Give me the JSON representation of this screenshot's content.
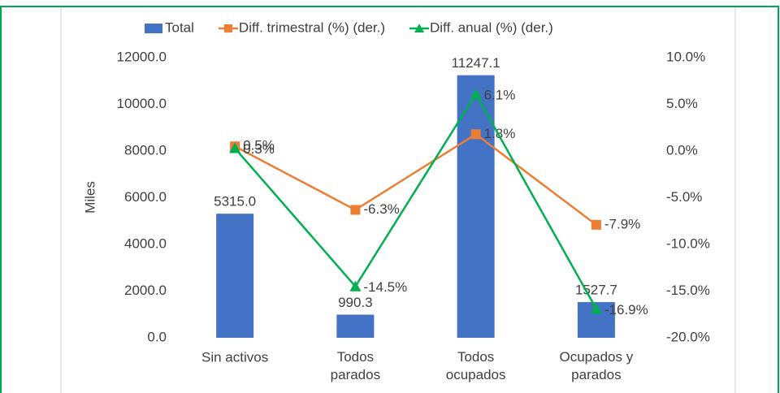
{
  "chart_data": {
    "type": "bar",
    "y_label": "Miles",
    "categories": [
      "Sin activos",
      "Todos parados",
      "Todos ocupados",
      "Ocupados y parados"
    ],
    "series": [
      {
        "name": "Total",
        "type": "bar",
        "color": "#4472c4",
        "values": [
          5315.0,
          990.3,
          11247.1,
          1527.7
        ],
        "value_labels": [
          "5315.0",
          "990.3",
          "11247.1",
          "1527.7"
        ]
      },
      {
        "name": "Diff. trimestral (%) (der.)",
        "type": "line",
        "axis": "y2",
        "marker": "square",
        "color": "#ed7d31",
        "values": [
          0.5,
          -6.3,
          1.8,
          -7.9
        ],
        "value_labels": [
          "0.5%",
          "-6.3%",
          "1.8%",
          "-7.9%"
        ]
      },
      {
        "name": "Diff. anual (%) (der.)",
        "type": "line",
        "axis": "y2",
        "marker": "triangle",
        "color": "#00b050",
        "values": [
          0.3,
          -14.5,
          6.1,
          -16.9
        ],
        "value_labels": [
          "0.3%",
          "-14.5%",
          "6.1%",
          "-16.9%"
        ]
      }
    ],
    "ylim": [
      0,
      12000
    ],
    "yticks": [
      {
        "value": 0,
        "label": "0.0"
      },
      {
        "value": 2000,
        "label": "2000.0"
      },
      {
        "value": 4000,
        "label": "4000.0"
      },
      {
        "value": 6000,
        "label": "6000.0"
      },
      {
        "value": 8000,
        "label": "8000.0"
      },
      {
        "value": 10000,
        "label": "10000.0"
      },
      {
        "value": 12000,
        "label": "12000.0"
      }
    ],
    "y2lim": [
      -20,
      10
    ],
    "y2ticks": [
      {
        "value": -20,
        "label": "-20.0%"
      },
      {
        "value": -15,
        "label": "-15.0%"
      },
      {
        "value": -10,
        "label": "-10.0%"
      },
      {
        "value": -5,
        "label": "-5.0%"
      },
      {
        "value": 0,
        "label": "0.0%"
      },
      {
        "value": 5,
        "label": "5.0%"
      },
      {
        "value": 10,
        "label": "10.0%"
      }
    ],
    "grid": false,
    "legend": "top"
  }
}
